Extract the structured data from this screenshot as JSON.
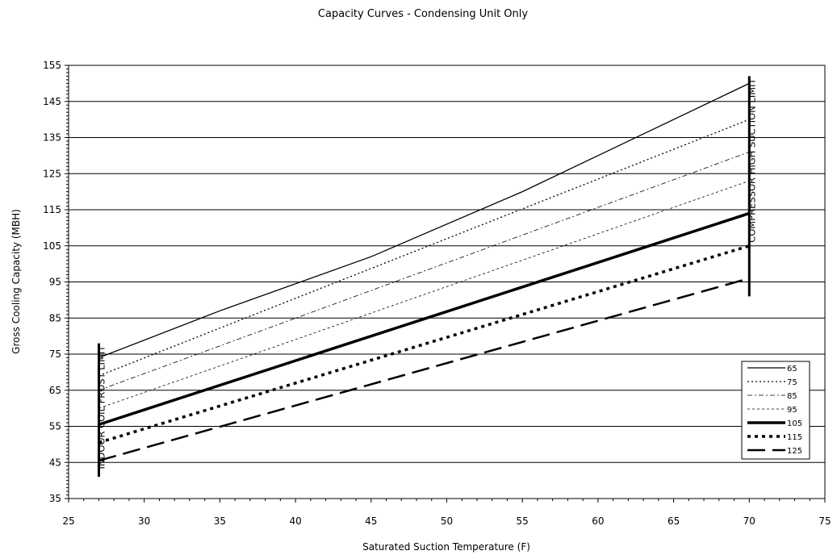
{
  "chart_data": {
    "type": "line",
    "title": "Capacity Curves - Condensing Unit Only",
    "xlabel": "Saturated Suction Temperature (F)",
    "ylabel": "Gross Cooling Capacity (MBH)",
    "xlim": [
      25,
      75
    ],
    "ylim": [
      35,
      155
    ],
    "xticks": [
      25,
      30,
      35,
      40,
      45,
      50,
      55,
      60,
      65,
      70,
      75
    ],
    "yticks": [
      35,
      45,
      55,
      65,
      75,
      85,
      95,
      105,
      115,
      125,
      135,
      145,
      155
    ],
    "grid": "horizontal",
    "legend_position": "bottom-right",
    "series": [
      {
        "name": "65",
        "style": "solid-thin",
        "x": [
          27,
          35,
          45,
          55,
          70
        ],
        "y": [
          74,
          87,
          102,
          120,
          150
        ]
      },
      {
        "name": "75",
        "style": "dotted-thin",
        "x": [
          27,
          70
        ],
        "y": [
          69,
          140
        ]
      },
      {
        "name": "85",
        "style": "dashdot-thin",
        "x": [
          27,
          70
        ],
        "y": [
          65,
          131
        ]
      },
      {
        "name": "95",
        "style": "fine-dash",
        "x": [
          27,
          70
        ],
        "y": [
          60,
          123
        ]
      },
      {
        "name": "105",
        "style": "solid-thick",
        "x": [
          27,
          70
        ],
        "y": [
          55.5,
          114
        ]
      },
      {
        "name": "115",
        "style": "dotted-thick",
        "x": [
          27,
          70
        ],
        "y": [
          50.5,
          105
        ]
      },
      {
        "name": "125",
        "style": "dashed-thick",
        "x": [
          27,
          70
        ],
        "y": [
          45.5,
          96
        ]
      }
    ],
    "annotations": [
      {
        "text": "INDOOR COIL FROST LIMIT",
        "x": 27,
        "y_range": [
          41,
          78
        ]
      },
      {
        "text": "COMPRESSOR HIGH SUCTION LIMIT",
        "x": 70,
        "y_range": [
          91,
          152
        ]
      }
    ]
  }
}
